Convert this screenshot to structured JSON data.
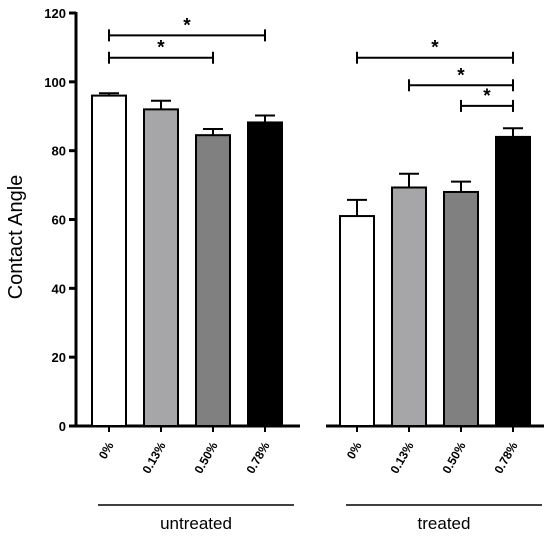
{
  "chart_data": {
    "type": "bar",
    "ylabel": "Contact Angle",
    "xlabel": "",
    "ylim": [
      0,
      120
    ],
    "yticks": [
      0,
      20,
      40,
      60,
      80,
      100,
      120
    ],
    "grid": false,
    "legend": "none",
    "categories": [
      "0%",
      "0.13%",
      "0.50%",
      "0.78%"
    ],
    "groups": [
      {
        "label": "untreated",
        "values": [
          96,
          92,
          84.5,
          88.2
        ],
        "errors": [
          0.7,
          2.5,
          1.8,
          2.0
        ]
      },
      {
        "label": "treated",
        "values": [
          61,
          69.3,
          68,
          84
        ],
        "errors": [
          4.7,
          4.0,
          3.0,
          2.5
        ]
      }
    ],
    "bar_colors": [
      "#ffffff",
      "#a6a6a8",
      "#808080",
      "#000000"
    ],
    "significance": [
      {
        "group": 0,
        "from": 0,
        "to": 3,
        "y": 113.5,
        "label": "*"
      },
      {
        "group": 0,
        "from": 0,
        "to": 2,
        "y": 107,
        "label": "*"
      },
      {
        "group": 1,
        "from": 0,
        "to": 3,
        "y": 107,
        "label": "*"
      },
      {
        "group": 1,
        "from": 1,
        "to": 3,
        "y": 99,
        "label": "*"
      },
      {
        "group": 1,
        "from": 2,
        "to": 3,
        "y": 93,
        "label": "*"
      }
    ]
  }
}
